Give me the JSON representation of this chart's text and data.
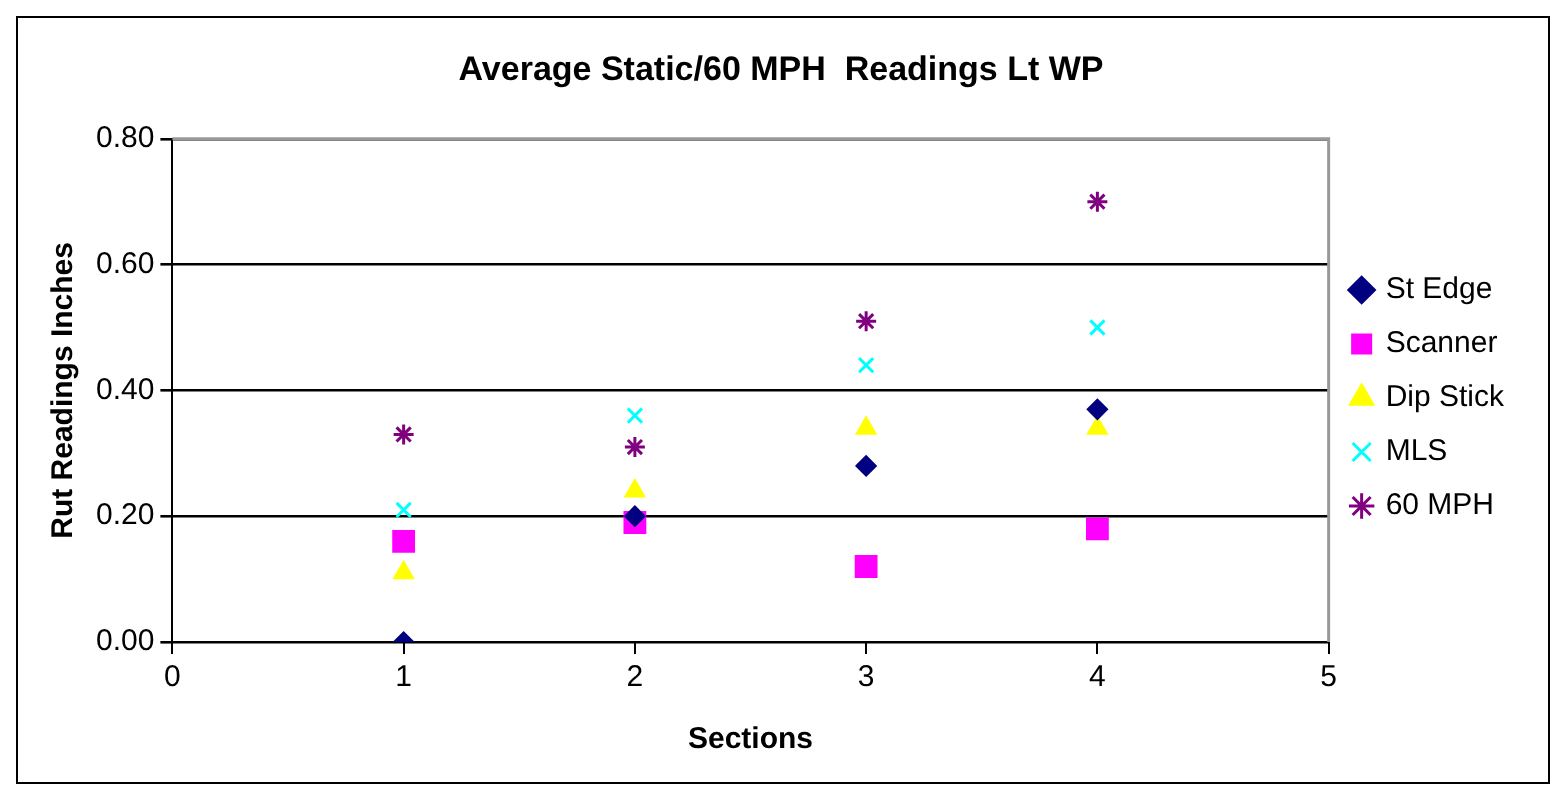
{
  "chart_data": {
    "type": "scatter",
    "title": "Average Static/60 MPH  Readings Lt WP",
    "xlabel": "Sections",
    "ylabel": "Rut Readings Inches",
    "x": [
      1,
      2,
      3,
      4
    ],
    "series": [
      {
        "name": "St Edge",
        "color": "#000080",
        "marker": "diamond",
        "values": [
          0,
          0.2,
          0.28,
          0.37
        ]
      },
      {
        "name": "Scanner",
        "color": "#ff00ff",
        "marker": "square",
        "values": [
          0.16,
          0.19,
          0.12,
          0.18
        ]
      },
      {
        "name": "Dip Stick",
        "color": "#ffff00",
        "marker": "triangle",
        "values": [
          0.11,
          0.24,
          0.34,
          0.34
        ]
      },
      {
        "name": "MLS",
        "color": "#00ffff",
        "marker": "cross",
        "values": [
          0.21,
          0.36,
          0.44,
          0.5
        ]
      },
      {
        "name": "60 MPH",
        "color": "#800080",
        "marker": "cross",
        "values": [
          0.33,
          0.31,
          0.51,
          0.7
        ]
      }
    ],
    "xlim": [
      0,
      5
    ],
    "xticks": [
      0,
      1,
      2,
      3,
      4,
      5
    ],
    "ylim": [
      0,
      0.8
    ],
    "yticks": [
      {
        "value": 0,
        "label": "0.00"
      },
      {
        "value": 0.2,
        "label": "0.20"
      },
      {
        "value": 0.4,
        "label": "0.40"
      },
      {
        "value": 0.6,
        "label": "0.60"
      },
      {
        "value": 0.8,
        "label": "0.80"
      }
    ],
    "grid": "y",
    "legend": "right"
  }
}
